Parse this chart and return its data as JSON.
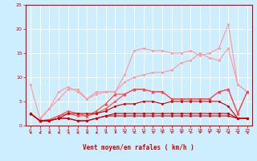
{
  "x": [
    0,
    1,
    2,
    3,
    4,
    5,
    6,
    7,
    8,
    9,
    10,
    11,
    12,
    13,
    14,
    15,
    16,
    17,
    18,
    19,
    20,
    21,
    22,
    23
  ],
  "series": [
    {
      "name": "line_pink_lower",
      "color": "#ff9999",
      "linewidth": 0.8,
      "marker": "o",
      "markersize": 1.8,
      "y": [
        2.5,
        1.2,
        3.5,
        7.0,
        8.0,
        7.0,
        5.5,
        6.5,
        7.0,
        7.0,
        9.0,
        10.0,
        10.5,
        11.0,
        11.0,
        11.5,
        13.0,
        13.5,
        15.0,
        14.0,
        13.5,
        16.0,
        8.5,
        7.0
      ]
    },
    {
      "name": "line_pink_upper",
      "color": "#ff9999",
      "linewidth": 0.8,
      "marker": "o",
      "markersize": 1.8,
      "y": [
        8.5,
        1.5,
        3.5,
        5.5,
        7.5,
        7.5,
        5.5,
        7.0,
        7.0,
        7.0,
        10.5,
        15.5,
        16.0,
        15.5,
        15.5,
        15.0,
        15.0,
        15.5,
        14.5,
        15.0,
        16.0,
        21.0,
        8.5,
        7.0
      ]
    },
    {
      "name": "line_red_mid1",
      "color": "#ff4444",
      "linewidth": 0.8,
      "marker": "o",
      "markersize": 1.8,
      "y": [
        2.5,
        1.0,
        1.2,
        2.0,
        2.5,
        2.0,
        2.0,
        2.5,
        3.5,
        5.0,
        6.5,
        7.5,
        7.5,
        7.0,
        7.0,
        5.5,
        5.5,
        5.5,
        5.5,
        5.5,
        7.0,
        7.5,
        2.5,
        7.0
      ]
    },
    {
      "name": "line_red_mid2",
      "color": "#ff4444",
      "linewidth": 0.8,
      "marker": "^",
      "markersize": 2.5,
      "y": [
        2.5,
        1.0,
        1.2,
        2.0,
        3.0,
        2.5,
        2.0,
        3.0,
        4.5,
        6.5,
        6.5,
        7.5,
        7.5,
        7.0,
        7.0,
        5.5,
        5.5,
        5.5,
        5.5,
        5.5,
        7.0,
        7.5,
        2.5,
        7.0
      ]
    },
    {
      "name": "line_red_low1",
      "color": "#cc0000",
      "linewidth": 0.8,
      "marker": "o",
      "markersize": 1.8,
      "y": [
        2.5,
        1.0,
        1.0,
        1.5,
        2.5,
        2.5,
        2.5,
        2.5,
        3.0,
        4.0,
        4.5,
        4.5,
        5.0,
        5.0,
        4.5,
        5.0,
        5.0,
        5.0,
        5.0,
        5.0,
        5.0,
        4.0,
        1.5,
        1.5
      ]
    },
    {
      "name": "line_red_low2",
      "color": "#cc0000",
      "linewidth": 0.8,
      "marker": "D",
      "markersize": 1.8,
      "y": [
        2.5,
        1.0,
        1.0,
        1.5,
        1.5,
        1.0,
        1.0,
        1.5,
        2.0,
        2.5,
        2.5,
        2.5,
        2.5,
        2.5,
        2.5,
        2.5,
        2.5,
        2.5,
        2.5,
        2.5,
        2.5,
        2.5,
        1.5,
        1.5
      ]
    },
    {
      "name": "line_red_flat",
      "color": "#cc0000",
      "linewidth": 0.8,
      "marker": "o",
      "markersize": 1.5,
      "y": [
        2.5,
        1.0,
        1.0,
        1.5,
        1.5,
        1.0,
        1.0,
        1.5,
        2.0,
        2.0,
        2.0,
        2.0,
        2.0,
        2.0,
        2.0,
        2.0,
        2.0,
        2.0,
        2.0,
        2.0,
        2.0,
        2.0,
        1.5,
        1.5
      ]
    }
  ],
  "arrow_angles": [
    270,
    270,
    270,
    270,
    260,
    270,
    270,
    270,
    300,
    310,
    300,
    290,
    300,
    300,
    310,
    310,
    310,
    310,
    330,
    350,
    350,
    270,
    280,
    260
  ],
  "xlabel": "Vent moyen/en rafales ( km/h )",
  "xlim": [
    -0.5,
    23.5
  ],
  "ylim": [
    0,
    25
  ],
  "yticks": [
    0,
    5,
    10,
    15,
    20,
    25
  ],
  "xticks": [
    0,
    1,
    2,
    3,
    4,
    5,
    6,
    7,
    8,
    9,
    10,
    11,
    12,
    13,
    14,
    15,
    16,
    17,
    18,
    19,
    20,
    21,
    22,
    23
  ],
  "bg_color": "#cceeff",
  "grid_color": "#ffffff",
  "red_color": "#cc0000"
}
